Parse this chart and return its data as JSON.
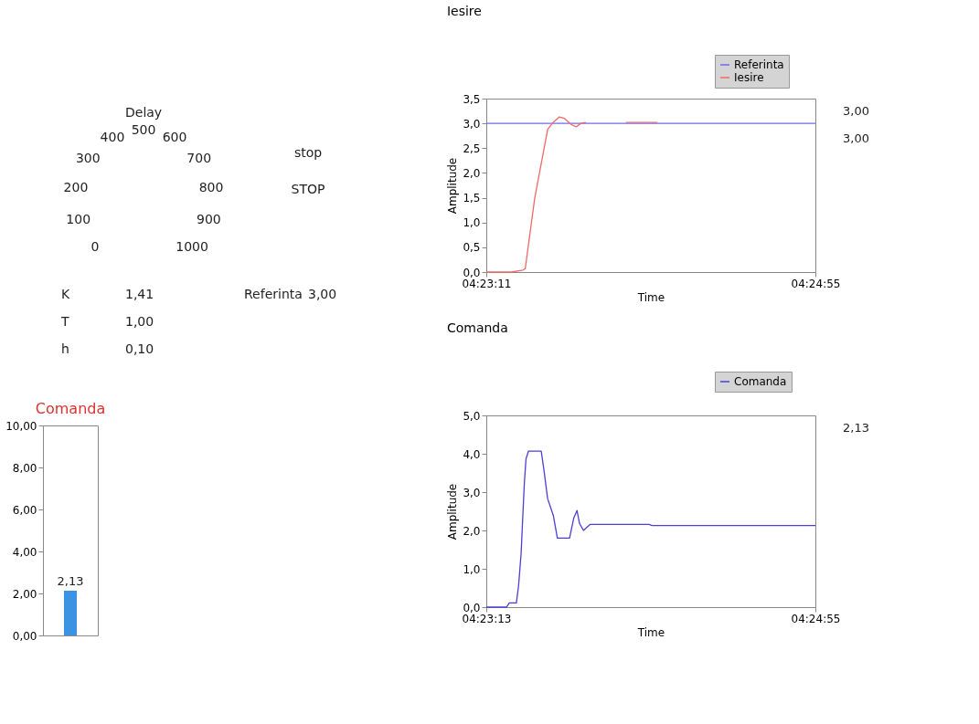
{
  "chart_data": [
    {
      "type": "other",
      "annotations": [
        "Delay",
        "0",
        "100",
        "200",
        "300",
        "400",
        "500",
        "600",
        "700",
        "800",
        "900",
        "1000",
        "stop",
        "STOP",
        "K",
        "1,41",
        "T",
        "1,00",
        "h",
        "0,10",
        "Referinta",
        "3,00"
      ]
    },
    {
      "type": "line",
      "title": "Iesire",
      "xlabel": "Time",
      "ylabel": "Amplitude",
      "legend": "top right",
      "grid": false,
      "xlim": [
        4.38639,
        4.41528
      ],
      "xticks": [
        {
          "value": 4.38639,
          "label": "04:23:11"
        },
        {
          "value": 4.41528,
          "label": "04:24:55"
        }
      ],
      "ylim": [
        0,
        3.5
      ],
      "yticks": [
        {
          "value": 0,
          "label": "0,0"
        },
        {
          "value": 0.5,
          "label": "0,5"
        },
        {
          "value": 1,
          "label": "1,0"
        },
        {
          "value": 1.5,
          "label": "1,5"
        },
        {
          "value": 2,
          "label": "2,0"
        },
        {
          "value": 2.5,
          "label": "2,5"
        },
        {
          "value": 3,
          "label": "3,0"
        },
        {
          "value": 3.5,
          "label": "3,5"
        }
      ],
      "series": [
        {
          "name": "Referinta",
          "color": "#6b6bf0",
          "x": [
            4.38639,
            4.41528
          ],
          "values": [
            3.0,
            3.0
          ]
        },
        {
          "name": "Iesire",
          "color": "#f06a6a",
          "x": [
            4.38639,
            4.38858,
            4.38961,
            4.38981,
            4.39064,
            4.39178,
            4.39222,
            4.39281,
            4.39325,
            4.39383,
            4.39428,
            4.39469,
            4.39514,
            4.397,
            4.39864,
            4.40142
          ],
          "values": [
            0,
            0,
            0.04,
            0.07,
            1.49,
            2.88,
            3.01,
            3.13,
            3.1,
            2.98,
            2.93,
            3.0,
            3.02,
            null,
            3.02,
            3.02
          ]
        }
      ],
      "annotations": [
        "3,00",
        "3,00"
      ]
    },
    {
      "type": "bar",
      "title": "Comanda",
      "categories": [
        null
      ],
      "values": [
        2.13
      ],
      "colors": [
        "#3b93e4"
      ],
      "value_labels": [
        "2,13"
      ],
      "ylim": [
        0,
        10
      ],
      "yticks": [
        {
          "value": 0,
          "label": "0,00"
        },
        {
          "value": 2,
          "label": "2,00"
        },
        {
          "value": 4,
          "label": "4,00"
        },
        {
          "value": 6,
          "label": "6,00"
        },
        {
          "value": 8,
          "label": "8,00"
        },
        {
          "value": 10,
          "label": "10,00"
        }
      ],
      "grid": false
    },
    {
      "type": "line",
      "title": "Comanda",
      "xlabel": "Time",
      "ylabel": "Amplitude",
      "legend": "top right",
      "grid": false,
      "xlim": [
        4.38694,
        4.41528
      ],
      "xticks": [
        {
          "value": 4.38694,
          "label": "04:23:13"
        },
        {
          "value": 4.41528,
          "label": "04:24:55"
        }
      ],
      "ylim": [
        0,
        5
      ],
      "yticks": [
        {
          "value": 0,
          "label": "0,0"
        },
        {
          "value": 1,
          "label": "1,0"
        },
        {
          "value": 2,
          "label": "2,0"
        },
        {
          "value": 3,
          "label": "3,0"
        },
        {
          "value": 4,
          "label": "4,0"
        },
        {
          "value": 5,
          "label": "5,0"
        }
      ],
      "series": [
        {
          "name": "Comanda",
          "color": "#4b3fd6",
          "x": [
            4.38694,
            4.38869,
            4.38892,
            4.38953,
            4.38972,
            4.38994,
            4.39008,
            4.39022,
            4.39036,
            4.39058,
            4.39167,
            4.39189,
            4.39222,
            4.39272,
            4.39306,
            4.39411,
            4.39447,
            4.39475,
            4.39497,
            4.39531,
            4.39589,
            4.40094,
            4.40122,
            4.41528
          ],
          "values": [
            0,
            0,
            0.11,
            0.11,
            0.56,
            1.41,
            2.35,
            3.25,
            3.87,
            4.07,
            4.07,
            3.61,
            2.83,
            2.38,
            1.8,
            1.8,
            2.32,
            2.52,
            2.18,
            2.0,
            2.16,
            2.16,
            2.13,
            2.13
          ]
        }
      ],
      "annotations": [
        "2,13"
      ]
    }
  ]
}
